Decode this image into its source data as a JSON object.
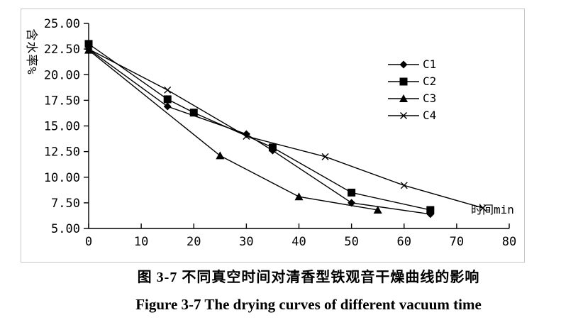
{
  "figure": {
    "caption_zh": "图 3-7 不同真空时间对清香型铁观音干燥曲线的影响",
    "caption_en": "Figure 3-7 The drying curves of different vacuum time"
  },
  "chart_data": {
    "type": "line",
    "title": "",
    "xlabel": "时间min",
    "ylabel": "含水率%",
    "xlim": [
      0,
      80
    ],
    "ylim": [
      5,
      25
    ],
    "x_ticks": [
      0,
      10,
      20,
      30,
      40,
      50,
      60,
      70,
      80
    ],
    "y_ticks": [
      5.0,
      7.5,
      10.0,
      12.5,
      15.0,
      17.5,
      20.0,
      22.5,
      25.0
    ],
    "y_tick_format": "two-decimals",
    "grid": false,
    "legend_position": "upper-right-inside",
    "line_color": "#000000",
    "series": [
      {
        "name": "C1",
        "marker": "diamond",
        "points": [
          [
            0,
            22.5
          ],
          [
            15,
            16.9
          ],
          [
            30,
            14.2
          ],
          [
            35,
            12.6
          ],
          [
            50,
            7.5
          ],
          [
            65,
            6.4
          ]
        ]
      },
      {
        "name": "C2",
        "marker": "square",
        "points": [
          [
            0,
            23.0
          ],
          [
            15,
            17.6
          ],
          [
            20,
            16.3
          ],
          [
            35,
            12.9
          ],
          [
            50,
            8.5
          ],
          [
            65,
            6.8
          ]
        ]
      },
      {
        "name": "C3",
        "marker": "triangle",
        "points": [
          [
            0,
            22.4
          ],
          [
            25,
            12.1
          ],
          [
            40,
            8.1
          ],
          [
            55,
            6.8
          ]
        ]
      },
      {
        "name": "C4",
        "marker": "x",
        "points": [
          [
            0,
            22.5
          ],
          [
            15,
            18.5
          ],
          [
            30,
            14.0
          ],
          [
            45,
            12.0
          ],
          [
            60,
            9.2
          ],
          [
            75,
            7.0
          ]
        ]
      }
    ]
  }
}
